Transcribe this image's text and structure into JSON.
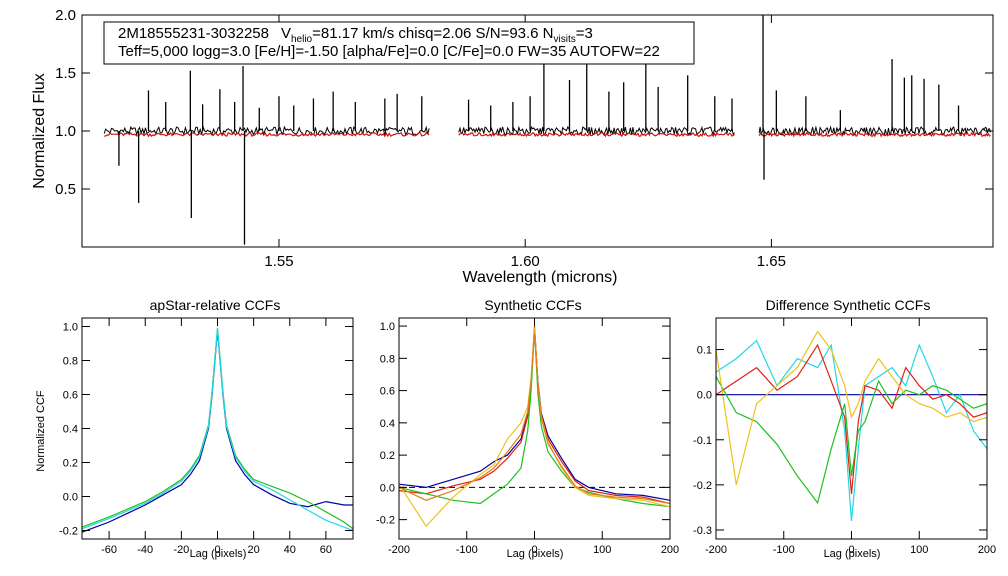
{
  "info_box": {
    "line1_id": "2M18555231-3032258",
    "line1_vlabel": "V",
    "line1_vsub": "helio",
    "line1_rest": "=81.17 km/s  chisq=2.06  S/N=93.6  N",
    "line1_nsub": "visits",
    "line1_nval": "=3",
    "line2": "Teff=5,000 logg=3.0 [Fe/H]=-1.50 [alpha/Fe]=0.0 [C/Fe]=0.0 FW=35 AUTOFW=22"
  },
  "colors": {
    "observed": "#000000",
    "model": "#d01010",
    "dark_blue": "#0000a0",
    "blue": "#2030ff",
    "green": "#20c020",
    "cyan": "#20d8e8",
    "red": "#e02010",
    "yellow": "#f0c020",
    "orange": "#e08018"
  },
  "chart_data": [
    {
      "type": "line",
      "panel": "spectrum",
      "xlabel": "Wavelength (microns)",
      "ylabel": "Normalized Flux",
      "xlim": [
        1.51,
        1.695
      ],
      "ylim": [
        0.0,
        2.0
      ],
      "xticks": [
        1.55,
        1.6,
        1.65
      ],
      "xtick_labels": [
        "1.55",
        "1.60",
        "1.65"
      ],
      "yticks": [
        0.5,
        1.0,
        1.5,
        2.0
      ],
      "ytick_labels": [
        "0.5",
        "1.0",
        "1.5",
        "2.0"
      ],
      "chips": [
        [
          1.5145,
          1.5805
        ],
        [
          1.5865,
          1.6425
        ],
        [
          1.6475,
          1.6945
        ]
      ],
      "series": [
        {
          "name": "observed",
          "color_key": "observed",
          "baseline": 1.0
        },
        {
          "name": "model",
          "color_key": "model",
          "baseline": 0.97
        }
      ],
      "spikes": [
        {
          "x": 1.5175,
          "y": 0.7
        },
        {
          "x": 1.5215,
          "y": 0.38
        },
        {
          "x": 1.5235,
          "y": 1.35
        },
        {
          "x": 1.527,
          "y": 1.25
        },
        {
          "x": 1.532,
          "y": 1.52
        },
        {
          "x": 1.5322,
          "y": 0.25
        },
        {
          "x": 1.5345,
          "y": 1.23
        },
        {
          "x": 1.538,
          "y": 1.36
        },
        {
          "x": 1.541,
          "y": 1.25
        },
        {
          "x": 1.5427,
          "y": 1.56
        },
        {
          "x": 1.543,
          "y": 0.02
        },
        {
          "x": 1.546,
          "y": 1.2
        },
        {
          "x": 1.55,
          "y": 1.3
        },
        {
          "x": 1.553,
          "y": 1.22
        },
        {
          "x": 1.557,
          "y": 1.28
        },
        {
          "x": 1.561,
          "y": 1.34
        },
        {
          "x": 1.5655,
          "y": 1.25
        },
        {
          "x": 1.5715,
          "y": 1.28
        },
        {
          "x": 1.574,
          "y": 1.32
        },
        {
          "x": 1.579,
          "y": 1.3
        },
        {
          "x": 1.5885,
          "y": 1.27
        },
        {
          "x": 1.593,
          "y": 1.22
        },
        {
          "x": 1.5975,
          "y": 1.25
        },
        {
          "x": 1.601,
          "y": 1.3
        },
        {
          "x": 1.6038,
          "y": 1.58
        },
        {
          "x": 1.609,
          "y": 1.44
        },
        {
          "x": 1.6125,
          "y": 1.62
        },
        {
          "x": 1.617,
          "y": 1.34
        },
        {
          "x": 1.62,
          "y": 1.42
        },
        {
          "x": 1.6245,
          "y": 1.62
        },
        {
          "x": 1.627,
          "y": 1.38
        },
        {
          "x": 1.633,
          "y": 1.48
        },
        {
          "x": 1.6385,
          "y": 1.3
        },
        {
          "x": 1.642,
          "y": 1.28
        },
        {
          "x": 1.6483,
          "y": 2.0
        },
        {
          "x": 1.6485,
          "y": 0.58
        },
        {
          "x": 1.651,
          "y": 1.35
        },
        {
          "x": 1.657,
          "y": 1.3
        },
        {
          "x": 1.664,
          "y": 1.18
        },
        {
          "x": 1.6745,
          "y": 1.62
        },
        {
          "x": 1.677,
          "y": 1.46
        },
        {
          "x": 1.6785,
          "y": 1.48
        },
        {
          "x": 1.681,
          "y": 1.45
        },
        {
          "x": 1.684,
          "y": 1.4
        },
        {
          "x": 1.688,
          "y": 1.22
        }
      ]
    },
    {
      "type": "line",
      "panel": "ccf1",
      "title": "apStar-relative CCFs",
      "xlabel": "Lag (pixels)",
      "ylabel": "Normalized CCF",
      "xlim": [
        -75,
        75
      ],
      "ylim": [
        -0.25,
        1.05
      ],
      "xticks": [
        -60,
        -40,
        -20,
        0,
        20,
        40,
        60
      ],
      "xtick_labels": [
        "-60",
        "-40",
        "-20",
        "0",
        "20",
        "40",
        "60"
      ],
      "yticks": [
        -0.2,
        0.0,
        0.2,
        0.4,
        0.6,
        0.8,
        1.0
      ],
      "ytick_labels": [
        "-0.2",
        "0.0",
        "0.2",
        "0.4",
        "0.6",
        "0.8",
        "1.0"
      ],
      "series": [
        {
          "name": "visit-a",
          "color_key": "dark_blue",
          "x": [
            -75,
            -60,
            -40,
            -30,
            -20,
            -15,
            -10,
            -5,
            -3,
            0,
            3,
            5,
            10,
            15,
            20,
            30,
            40,
            50,
            60,
            70,
            75
          ],
          "y": [
            -0.21,
            -0.15,
            -0.05,
            0.01,
            0.07,
            0.13,
            0.21,
            0.4,
            0.6,
            0.98,
            0.6,
            0.4,
            0.21,
            0.13,
            0.07,
            0.01,
            -0.04,
            -0.06,
            -0.03,
            -0.05,
            -0.05
          ]
        },
        {
          "name": "visit-b",
          "color_key": "green",
          "x": [
            -75,
            -60,
            -40,
            -30,
            -20,
            -15,
            -10,
            -5,
            -3,
            0,
            3,
            5,
            10,
            15,
            20,
            30,
            40,
            50,
            60,
            70,
            75
          ],
          "y": [
            -0.18,
            -0.12,
            -0.03,
            0.03,
            0.1,
            0.16,
            0.24,
            0.42,
            0.62,
            0.99,
            0.62,
            0.42,
            0.24,
            0.16,
            0.1,
            0.06,
            0.02,
            -0.03,
            -0.09,
            -0.15,
            -0.19
          ]
        },
        {
          "name": "visit-c",
          "color_key": "cyan",
          "x": [
            -75,
            -60,
            -40,
            -30,
            -20,
            -15,
            -10,
            -5,
            -3,
            0,
            3,
            5,
            10,
            15,
            20,
            30,
            40,
            50,
            60,
            70,
            75
          ],
          "y": [
            -0.19,
            -0.13,
            -0.04,
            0.02,
            0.09,
            0.15,
            0.23,
            0.41,
            0.61,
            0.99,
            0.61,
            0.41,
            0.23,
            0.15,
            0.09,
            0.04,
            -0.02,
            -0.08,
            -0.14,
            -0.18,
            -0.2
          ]
        }
      ]
    },
    {
      "type": "line",
      "panel": "ccf2",
      "title": "Synthetic CCFs",
      "xlabel": "Lag (pixels)",
      "xlim": [
        -200,
        200
      ],
      "ylim": [
        -0.32,
        1.05
      ],
      "xticks": [
        -200,
        -100,
        0,
        100,
        200
      ],
      "xtick_labels": [
        "-200",
        "-100",
        "0",
        "100",
        "200"
      ],
      "yticks": [
        -0.2,
        0.0,
        0.2,
        0.4,
        0.6,
        0.8,
        1.0
      ],
      "ytick_labels": [
        "-0.2",
        "0.0",
        "0.2",
        "0.4",
        "0.6",
        "0.8",
        "1.0"
      ],
      "zero_line": 0.0,
      "series": [
        {
          "name": "synth-a",
          "color_key": "dark_blue",
          "x": [
            -200,
            -160,
            -120,
            -80,
            -60,
            -40,
            -20,
            -10,
            -5,
            0,
            5,
            10,
            20,
            40,
            60,
            80,
            120,
            160,
            200
          ],
          "y": [
            0.02,
            0.0,
            0.05,
            0.1,
            0.16,
            0.2,
            0.3,
            0.45,
            0.65,
            0.99,
            0.66,
            0.46,
            0.32,
            0.18,
            0.05,
            0.0,
            -0.04,
            -0.05,
            -0.08
          ]
        },
        {
          "name": "synth-b",
          "color_key": "red",
          "x": [
            -200,
            -160,
            -120,
            -80,
            -60,
            -40,
            -20,
            -10,
            -5,
            0,
            5,
            10,
            20,
            40,
            60,
            80,
            120,
            160,
            200
          ],
          "y": [
            -0.02,
            -0.04,
            0.01,
            0.05,
            0.1,
            0.18,
            0.28,
            0.44,
            0.64,
            1.0,
            0.65,
            0.45,
            0.3,
            0.16,
            0.04,
            -0.02,
            -0.05,
            -0.06,
            -0.1
          ]
        },
        {
          "name": "synth-c",
          "color_key": "green",
          "x": [
            -200,
            -160,
            -120,
            -80,
            -60,
            -40,
            -20,
            -10,
            -5,
            0,
            5,
            10,
            20,
            40,
            60,
            80,
            120,
            160,
            200
          ],
          "y": [
            0.0,
            -0.04,
            -0.08,
            -0.1,
            -0.04,
            0.02,
            0.12,
            0.35,
            0.6,
            0.98,
            0.58,
            0.38,
            0.22,
            0.1,
            0.0,
            -0.03,
            -0.07,
            -0.1,
            -0.12
          ]
        },
        {
          "name": "synth-d",
          "color_key": "yellow",
          "x": [
            -200,
            -160,
            -120,
            -80,
            -60,
            -40,
            -20,
            -10,
            -5,
            0,
            5,
            10,
            20,
            40,
            60,
            80,
            120,
            160,
            200
          ],
          "y": [
            0.02,
            -0.24,
            -0.06,
            0.08,
            0.14,
            0.3,
            0.4,
            0.5,
            0.68,
            0.99,
            0.65,
            0.44,
            0.28,
            0.12,
            0.0,
            -0.05,
            -0.07,
            -0.08,
            -0.12
          ]
        },
        {
          "name": "synth-e",
          "color_key": "orange",
          "x": [
            -200,
            -160,
            -120,
            -80,
            -60,
            -40,
            -20,
            -10,
            -5,
            0,
            5,
            10,
            20,
            40,
            60,
            80,
            120,
            160,
            200
          ],
          "y": [
            0.0,
            -0.08,
            -0.02,
            0.06,
            0.12,
            0.22,
            0.33,
            0.47,
            0.66,
            0.97,
            0.63,
            0.43,
            0.27,
            0.13,
            0.01,
            -0.04,
            -0.06,
            -0.07,
            -0.1
          ]
        }
      ]
    },
    {
      "type": "line",
      "panel": "ccf3",
      "title": "Difference Synthetic CCFs",
      "xlabel": "Lag (pixels)",
      "xlim": [
        -200,
        200
      ],
      "ylim": [
        -0.32,
        0.17
      ],
      "xticks": [
        -200,
        -100,
        0,
        100,
        200
      ],
      "xtick_labels": [
        "-200",
        "-100",
        "0",
        "100",
        "200"
      ],
      "yticks": [
        -0.3,
        -0.2,
        -0.1,
        0.0,
        0.1
      ],
      "ytick_labels": [
        "-0.3",
        "-0.2",
        "-0.1",
        "0.0",
        "0.1"
      ],
      "series": [
        {
          "name": "diff-a",
          "color_key": "dark_blue",
          "x": [
            -200,
            200
          ],
          "y": [
            0.0,
            0.0
          ]
        },
        {
          "name": "diff-b",
          "color_key": "cyan",
          "x": [
            -200,
            -170,
            -140,
            -110,
            -80,
            -50,
            -30,
            -10,
            0,
            10,
            20,
            40,
            60,
            80,
            100,
            120,
            140,
            160,
            180,
            200
          ],
          "y": [
            0.05,
            0.08,
            0.12,
            0.02,
            0.08,
            0.06,
            0.11,
            -0.08,
            -0.28,
            -0.12,
            0.02,
            0.04,
            0.06,
            0.02,
            0.11,
            0.04,
            -0.04,
            0.0,
            -0.08,
            -0.12
          ]
        },
        {
          "name": "diff-c",
          "color_key": "red",
          "x": [
            -200,
            -170,
            -140,
            -110,
            -80,
            -50,
            -30,
            -10,
            0,
            10,
            20,
            40,
            60,
            80,
            100,
            120,
            140,
            160,
            180,
            200
          ],
          "y": [
            0.0,
            0.03,
            0.06,
            0.01,
            0.04,
            0.11,
            0.03,
            -0.05,
            -0.22,
            -0.06,
            0.02,
            0.01,
            -0.03,
            0.06,
            0.02,
            -0.01,
            0.0,
            -0.02,
            -0.05,
            -0.04
          ]
        },
        {
          "name": "diff-d",
          "color_key": "green",
          "x": [
            -200,
            -170,
            -140,
            -110,
            -80,
            -50,
            -30,
            -10,
            0,
            10,
            20,
            40,
            60,
            80,
            100,
            120,
            140,
            160,
            180,
            200
          ],
          "y": [
            0.04,
            -0.04,
            -0.06,
            -0.11,
            -0.18,
            -0.24,
            -0.12,
            -0.02,
            -0.18,
            -0.08,
            -0.06,
            0.03,
            -0.02,
            0.01,
            0.0,
            0.02,
            0.01,
            -0.01,
            -0.03,
            -0.02
          ]
        },
        {
          "name": "diff-e",
          "color_key": "yellow",
          "x": [
            -200,
            -170,
            -140,
            -110,
            -80,
            -50,
            -30,
            -10,
            0,
            10,
            20,
            40,
            60,
            80,
            100,
            120,
            140,
            160,
            180,
            200
          ],
          "y": [
            0.1,
            -0.2,
            -0.02,
            0.02,
            0.06,
            0.14,
            0.1,
            0.02,
            -0.05,
            -0.02,
            0.03,
            0.08,
            0.04,
            0.0,
            -0.02,
            -0.03,
            -0.05,
            -0.04,
            -0.06,
            -0.05
          ]
        }
      ]
    }
  ]
}
